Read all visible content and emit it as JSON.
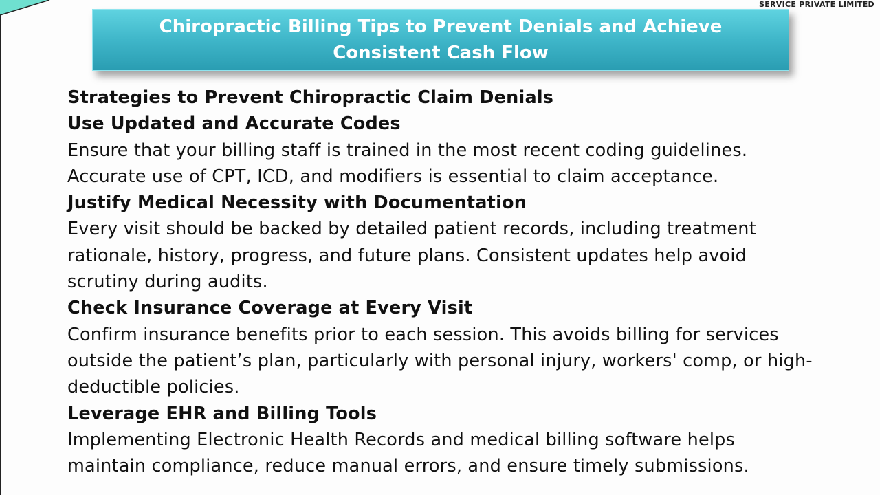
{
  "logo_text": "SERVICE PRIVATE LIMITED",
  "title": "Chiropractic Billing Tips to Prevent Denials and Achieve Consistent Cash Flow",
  "main_heading": "Strategies to Prevent Chiropractic Claim Denials",
  "sections": [
    {
      "heading": "Use Updated and Accurate Codes",
      "lines": [
        "Ensure that your billing staff is trained in the most recent coding guidelines.",
        "Accurate use of CPT, ICD, and modifiers is essential to claim acceptance."
      ]
    },
    {
      "heading": "Justify Medical Necessity with Documentation",
      "lines": [
        "Every visit should be backed by detailed patient records, including treatment",
        "rationale, history, progress, and future plans. Consistent updates help avoid",
        "scrutiny during audits."
      ]
    },
    {
      "heading": "Check Insurance Coverage at Every Visit",
      "lines": [
        "Confirm insurance benefits prior to each session. This avoids billing for services",
        "outside the patient’s plan, particularly with personal injury, workers' comp, or high-",
        "deductible policies."
      ]
    },
    {
      "heading": "Leverage EHR and Billing Tools",
      "lines": [
        "Implementing Electronic Health Records and medical billing software helps",
        "maintain compliance, reduce manual errors, and ensure timely submissions."
      ]
    }
  ],
  "colors": {
    "title_bg": "#3fb6c9",
    "title_text": "#ffffff",
    "body_text": "#111111"
  }
}
